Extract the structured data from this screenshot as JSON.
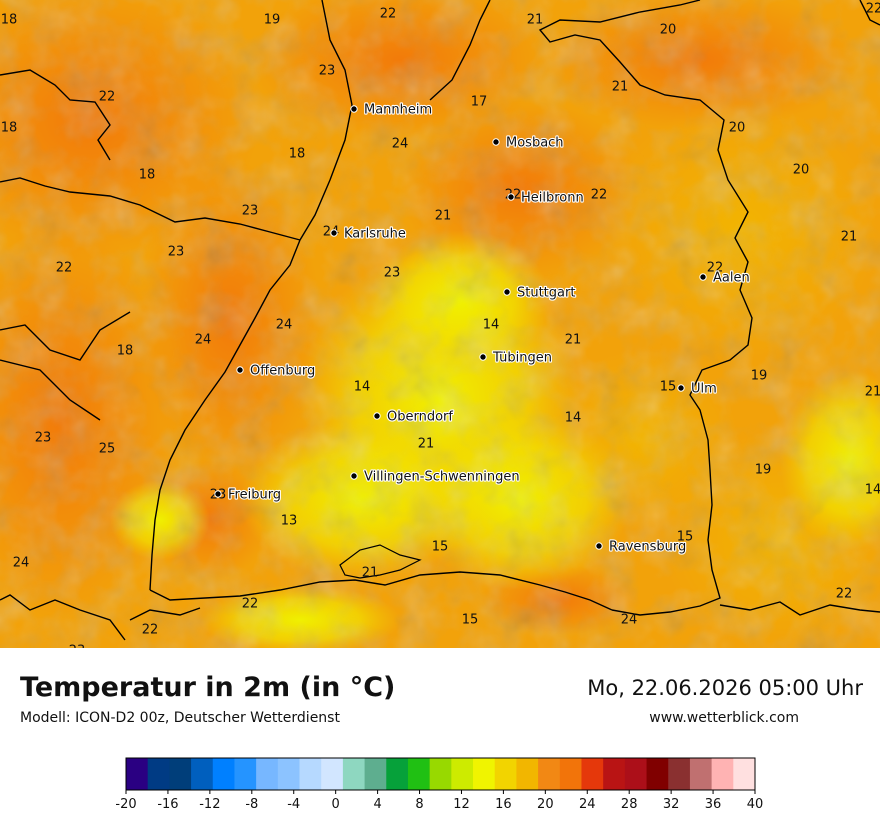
{
  "title": "Temperatur in 2m (in °C)",
  "model": "Modell: ICON-D2 00z, Deutscher Wetterdienst",
  "datetime": "Mo, 22.06.2026 05:00 Uhr",
  "website": "www.wetterblick.com",
  "cities": [
    {
      "name": "Mannheim"
    },
    {
      "name": "Mosbach"
    },
    {
      "name": "Heilbronn"
    },
    {
      "name": "Karlsruhe"
    },
    {
      "name": "Aalen"
    },
    {
      "name": "Stuttgart"
    },
    {
      "name": "Tübingen"
    },
    {
      "name": "Offenburg"
    },
    {
      "name": "Ulm"
    },
    {
      "name": "Oberndorf"
    },
    {
      "name": "Villingen-Schwenningen"
    },
    {
      "name": "Freiburg"
    },
    {
      "name": "Ravensburg"
    }
  ],
  "temperature_labels": [
    "18",
    "19",
    "22",
    "21",
    "22",
    "20",
    "22",
    "23",
    "18",
    "17",
    "21",
    "20",
    "24",
    "18",
    "20",
    "18",
    "22",
    "22",
    "23",
    "21",
    "21",
    "24",
    "23",
    "22",
    "22",
    "23",
    "24",
    "21",
    "18",
    "24",
    "14",
    "19",
    "14",
    "15",
    "21",
    "23",
    "25",
    "14",
    "21",
    "19",
    "14",
    "23",
    "13",
    "15",
    "24",
    "21",
    "15",
    "22",
    "22",
    "24",
    "15",
    "23",
    "22"
  ],
  "colorbar": {
    "ticks": [
      "-20",
      "-16",
      "-12",
      "-8",
      "-4",
      "0",
      "4",
      "8",
      "12",
      "16",
      "20",
      "24",
      "28",
      "32",
      "36",
      "40"
    ],
    "colors": [
      "#2a0082",
      "#003b84",
      "#003e7a",
      "#005fbe",
      "#0080ff",
      "#2594ff",
      "#77b7ff",
      "#8cc3ff",
      "#b6d9ff",
      "#d2e6ff",
      "#8ed7c0",
      "#5eae8f",
      "#06a13a",
      "#20c013",
      "#98d900",
      "#cdeb00",
      "#f0f400",
      "#f2d400",
      "#f2b600",
      "#f28814",
      "#f2740a",
      "#e5380b",
      "#b91414",
      "#ac0f19",
      "#800000",
      "#8a3030",
      "#c07070",
      "#ffb3b3",
      "#ffe0e0"
    ]
  }
}
